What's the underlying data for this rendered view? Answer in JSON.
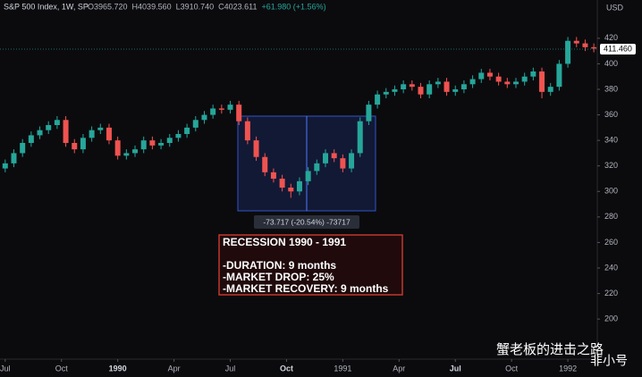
{
  "chart_data": {
    "type": "candlestick",
    "title": "S&P 500 Index, 1W, SP",
    "header_values": [
      "O3965.720",
      "H4039.560",
      "L3910.740",
      "C4023.611",
      "+61.980 (+1.56%)"
    ],
    "currency": "USD",
    "last_price": {
      "value": 411.46,
      "label": "411.460"
    },
    "measure_label": "-73.717 (-20.54%) -73717",
    "annotation": [
      "RECESSION 1990 - 1991",
      "-DURATION: 9 months",
      "-MARKET DROP: 25%",
      "-MARKET RECOVERY: 9 months"
    ],
    "watermark": [
      "蟹老板的进击之路",
      "非小号"
    ],
    "up_color": "#26a69a",
    "down_color": "#ef5350",
    "grid": false,
    "xlim": [
      -1.2,
      136.8
    ],
    "xticks": [
      {
        "value": 0,
        "label": "Jul"
      },
      {
        "value": 13,
        "label": "Oct"
      },
      {
        "value": 26,
        "label": "1990"
      },
      {
        "value": 39,
        "label": "Apr"
      },
      {
        "value": 52,
        "label": "Jul"
      },
      {
        "value": 65,
        "label": "Oct"
      },
      {
        "value": 78,
        "label": "1991"
      },
      {
        "value": 91,
        "label": "Apr"
      },
      {
        "value": 104,
        "label": "Jul"
      },
      {
        "value": 117,
        "label": "Oct"
      },
      {
        "value": 130,
        "label": "1992"
      }
    ],
    "ylim": [
      170,
      450
    ],
    "yticks": [
      200,
      220,
      240,
      260,
      280,
      300,
      320,
      340,
      360,
      380,
      400,
      420
    ],
    "x": [
      0,
      2,
      4,
      6,
      8,
      10,
      12,
      14,
      16,
      18,
      20,
      22,
      24,
      26,
      28,
      30,
      32,
      34,
      36,
      38,
      40,
      42,
      44,
      46,
      48,
      50,
      52,
      54,
      56,
      58,
      60,
      62,
      64,
      66,
      68,
      70,
      72,
      74,
      76,
      78,
      80,
      82,
      84,
      86,
      88,
      90,
      92,
      94,
      96,
      98,
      100,
      102,
      104,
      106,
      108,
      110,
      112,
      114,
      116,
      118,
      120,
      122,
      124,
      126,
      128,
      130,
      132,
      134,
      136
    ],
    "open": [
      318,
      322,
      330,
      338,
      344,
      348,
      352,
      356,
      338,
      333,
      342,
      348,
      350,
      340,
      328,
      330,
      333,
      340,
      336,
      338,
      342,
      345,
      350,
      356,
      360,
      365,
      364,
      368,
      355,
      340,
      327,
      315,
      310,
      303,
      300,
      308,
      316,
      322,
      330,
      326,
      318,
      330,
      355,
      368,
      376,
      378,
      380,
      384,
      382,
      376,
      384,
      386,
      378,
      380,
      384,
      388,
      393,
      390,
      386,
      384,
      386,
      390,
      394,
      378,
      382,
      400,
      418,
      416,
      413
    ],
    "high": [
      325,
      333,
      341,
      347,
      351,
      355,
      359,
      359,
      341,
      345,
      351,
      353,
      353,
      343,
      333,
      336,
      343,
      343,
      341,
      345,
      348,
      353,
      359,
      363,
      368,
      368,
      371,
      371,
      358,
      343,
      330,
      318,
      313,
      306,
      311,
      319,
      325,
      333,
      333,
      329,
      333,
      358,
      371,
      379,
      381,
      383,
      387,
      387,
      385,
      387,
      389,
      389,
      383,
      387,
      391,
      396,
      396,
      393,
      389,
      389,
      393,
      397,
      397,
      385,
      403,
      421,
      421,
      419,
      416
    ],
    "low": [
      315,
      319,
      327,
      335,
      341,
      345,
      349,
      335,
      330,
      330,
      339,
      345,
      337,
      325,
      325,
      327,
      330,
      333,
      333,
      335,
      339,
      342,
      347,
      353,
      357,
      361,
      361,
      352,
      337,
      324,
      312,
      307,
      300,
      295,
      297,
      305,
      313,
      319,
      323,
      315,
      315,
      327,
      352,
      365,
      373,
      375,
      377,
      379,
      373,
      373,
      381,
      375,
      375,
      377,
      381,
      385,
      387,
      383,
      381,
      381,
      383,
      387,
      373,
      375,
      379,
      397,
      413,
      410,
      409
    ],
    "close": [
      322,
      330,
      338,
      344,
      348,
      352,
      356,
      338,
      333,
      342,
      348,
      350,
      340,
      328,
      330,
      333,
      340,
      336,
      338,
      342,
      345,
      350,
      356,
      360,
      365,
      364,
      368,
      355,
      340,
      327,
      315,
      310,
      303,
      300,
      308,
      316,
      322,
      330,
      326,
      318,
      330,
      355,
      368,
      376,
      378,
      380,
      384,
      382,
      376,
      384,
      386,
      378,
      380,
      384,
      388,
      393,
      390,
      386,
      384,
      386,
      390,
      394,
      378,
      382,
      400,
      418,
      416,
      413,
      412
    ]
  }
}
